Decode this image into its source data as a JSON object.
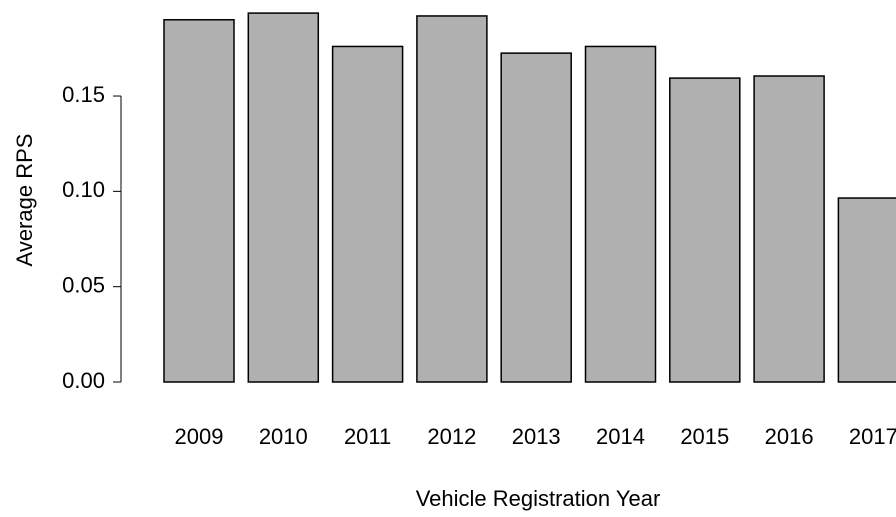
{
  "chart_data": {
    "type": "bar",
    "x_label": "Vehicle Registration Year",
    "y_label": "Average RPS",
    "categories": [
      "2009",
      "2010",
      "2011",
      "2012",
      "2013",
      "2014",
      "2015",
      "2016",
      "2017"
    ],
    "values": [
      0.19,
      0.1935,
      0.176,
      0.192,
      0.1725,
      0.176,
      0.1594,
      0.1605,
      0.0965
    ],
    "color": "#b0b0b0",
    "ylim": [
      0,
      0.2
    ],
    "yticks": [
      {
        "value": 0,
        "label": "0.00"
      },
      {
        "value": 0.05,
        "label": "0.05"
      },
      {
        "value": 0.1,
        "label": "0.10"
      },
      {
        "value": 0.15,
        "label": "0.15"
      }
    ],
    "grid": false
  }
}
